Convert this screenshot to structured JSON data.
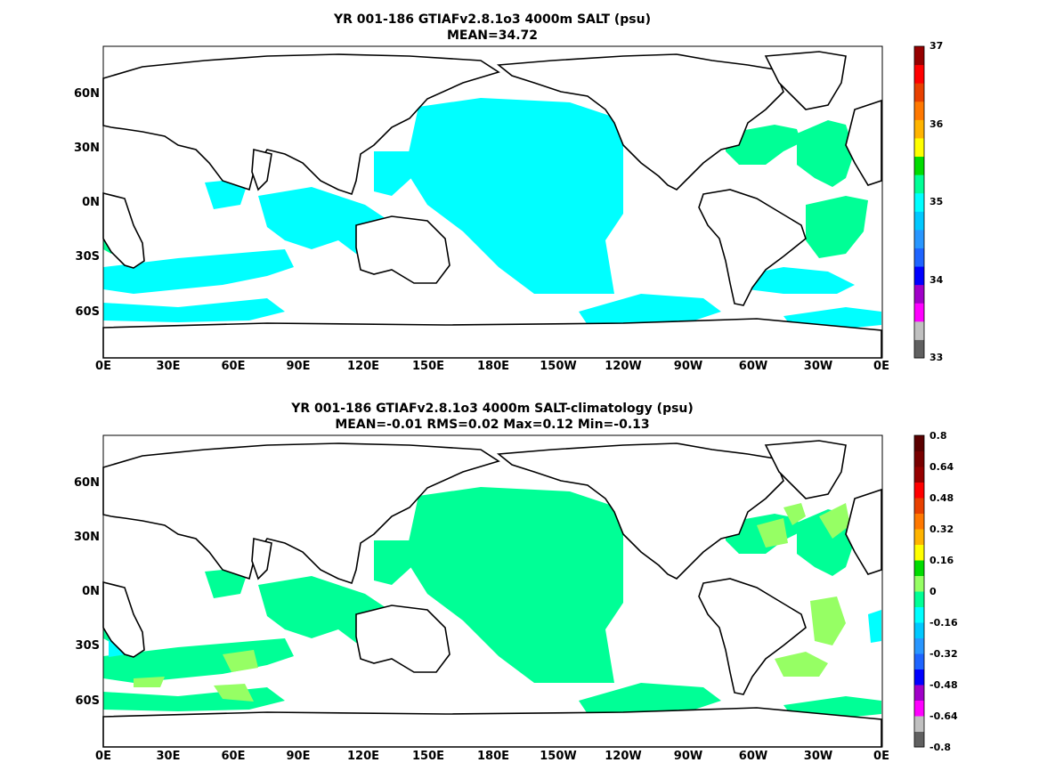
{
  "panels": [
    {
      "title_line1": "YR 001-186 GTIAFv2.8.1o3 4000m SALT (psu)",
      "title_line2": "MEAN=34.72",
      "x_ticks": [
        "0E",
        "30E",
        "60E",
        "90E",
        "120E",
        "150E",
        "180E",
        "150W",
        "120W",
        "90W",
        "60W",
        "30W",
        "0E"
      ],
      "y_ticks": [
        "60N",
        "30N",
        "0N",
        "30S",
        "60S"
      ],
      "colorbar": {
        "labels": [
          "37",
          "36",
          "35",
          "34",
          "33"
        ],
        "colors": [
          "#606060",
          "#c0c0c0",
          "#ff00ff",
          "#a000c8",
          "#0000ff",
          "#1e64ff",
          "#2896ff",
          "#00c8ff",
          "#00ffff",
          "#00ff96",
          "#00dc00",
          "#ffff00",
          "#ffb400",
          "#ff7800",
          "#e84000",
          "#ff0000",
          "#960000"
        ]
      },
      "fill": {
        "primary": "#00ffff",
        "secondary": "#00ff96"
      }
    },
    {
      "title_line1": "YR 001-186 GTIAFv2.8.1o3 4000m SALT-climatology (psu)",
      "title_line2": "MEAN=-0.01   RMS=0.02   Max=0.12   Min=-0.13",
      "x_ticks": [
        "0E",
        "30E",
        "60E",
        "90E",
        "120E",
        "150E",
        "180E",
        "150W",
        "120W",
        "90W",
        "60W",
        "30W",
        "0E"
      ],
      "y_ticks": [
        "60N",
        "30N",
        "0N",
        "30S",
        "60S"
      ],
      "colorbar": {
        "labels": [
          "0.8",
          "0.64",
          "0.48",
          "0.32",
          "0.16",
          "0",
          "-0.16",
          "-0.32",
          "-0.48",
          "-0.64",
          "-0.8"
        ],
        "colors": [
          "#606060",
          "#c0c0c0",
          "#ff00ff",
          "#a000c8",
          "#0000ff",
          "#1e64ff",
          "#2896ff",
          "#00c8ff",
          "#00ffff",
          "#00ff96",
          "#96ff64",
          "#00dc00",
          "#ffff00",
          "#ffb400",
          "#ff7800",
          "#e84000",
          "#ff0000",
          "#960000",
          "#780000",
          "#5a0000"
        ]
      },
      "fill": {
        "primary": "#00ff96",
        "secondary": "#96ff64"
      }
    }
  ]
}
